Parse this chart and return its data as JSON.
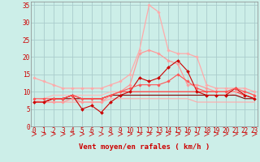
{
  "xlabel": "Vent moyen/en rafales ( km/h )",
  "bg_color": "#cceee8",
  "grid_color": "#aacccc",
  "ylim": [
    0,
    36
  ],
  "xlim": [
    -0.3,
    23.3
  ],
  "yticks": [
    0,
    5,
    10,
    15,
    20,
    25,
    30,
    35
  ],
  "xticks": [
    0,
    1,
    2,
    3,
    4,
    5,
    6,
    7,
    8,
    9,
    10,
    11,
    12,
    13,
    14,
    15,
    16,
    17,
    18,
    19,
    20,
    21,
    22,
    23
  ],
  "series": [
    {
      "name": "light_pink_smooth",
      "color": "#ffaaaa",
      "linewidth": 0.9,
      "marker": "D",
      "markersize": 1.8,
      "y": [
        14,
        13,
        12,
        11,
        11,
        11,
        11,
        11,
        12,
        13,
        15,
        22,
        35,
        33,
        22,
        21,
        21,
        20,
        12,
        11,
        11,
        11,
        11,
        10
      ]
    },
    {
      "name": "light_pink_line2",
      "color": "#ff9999",
      "linewidth": 0.9,
      "marker": "D",
      "markersize": 1.8,
      "y": [
        7,
        7,
        7,
        7,
        8,
        7,
        7,
        7,
        9,
        10,
        12,
        21,
        22,
        21,
        19,
        18,
        12,
        12,
        11,
        10,
        10,
        10,
        10,
        9
      ]
    },
    {
      "name": "dark_red_zigzag",
      "color": "#cc0000",
      "linewidth": 0.8,
      "marker": "D",
      "markersize": 2.0,
      "y": [
        7,
        7,
        8,
        8,
        9,
        5,
        6,
        4,
        7,
        9,
        10,
        14,
        13,
        14,
        17,
        19,
        16,
        10,
        9,
        9,
        9,
        11,
        9,
        8
      ]
    },
    {
      "name": "medium_red_line",
      "color": "#ff5555",
      "linewidth": 0.8,
      "marker": "D",
      "markersize": 1.8,
      "y": [
        8,
        8,
        8,
        8,
        9,
        8,
        8,
        8,
        9,
        10,
        11,
        12,
        12,
        12,
        13,
        15,
        13,
        11,
        10,
        10,
        10,
        11,
        10,
        9
      ]
    },
    {
      "name": "flat_pink_high",
      "color": "#ffbbbb",
      "linewidth": 0.8,
      "marker": null,
      "markersize": 0,
      "y": [
        7,
        8,
        9,
        9,
        9,
        9,
        9,
        9,
        10,
        10,
        10,
        10,
        10,
        10,
        10,
        10,
        10,
        10,
        10,
        10,
        10,
        9,
        9,
        8
      ]
    },
    {
      "name": "flat_dark_line",
      "color": "#880000",
      "linewidth": 0.8,
      "marker": null,
      "markersize": 0,
      "y": [
        7,
        7,
        8,
        8,
        8,
        8,
        8,
        8,
        9,
        9,
        9,
        9,
        9,
        9,
        9,
        9,
        9,
        9,
        9,
        9,
        9,
        9,
        8,
        8
      ]
    },
    {
      "name": "flat_red_line",
      "color": "#ff3333",
      "linewidth": 0.8,
      "marker": null,
      "markersize": 0,
      "y": [
        7,
        7,
        8,
        8,
        9,
        8,
        8,
        8,
        9,
        10,
        10,
        10,
        10,
        10,
        10,
        10,
        10,
        10,
        10,
        10,
        10,
        10,
        9,
        8
      ]
    },
    {
      "name": "pink_declining",
      "color": "#ffaaaa",
      "linewidth": 0.8,
      "marker": null,
      "markersize": 0,
      "y": [
        7,
        7,
        7,
        7,
        7,
        7,
        7,
        7,
        8,
        8,
        8,
        8,
        8,
        8,
        8,
        8,
        8,
        7,
        7,
        7,
        7,
        7,
        7,
        7
      ]
    }
  ],
  "tick_color": "#cc0000",
  "tick_fontsize": 5.5,
  "xlabel_fontsize": 6.5,
  "xlabel_color": "#cc0000"
}
